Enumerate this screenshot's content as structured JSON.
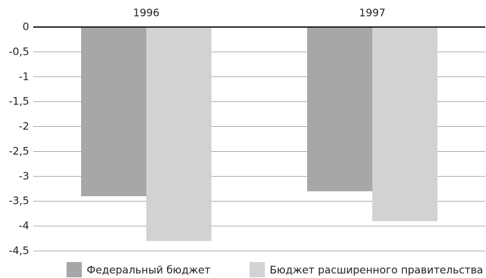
{
  "chart_data": {
    "type": "bar",
    "categories": [
      "1996",
      "1997"
    ],
    "series": [
      {
        "name": "Федеральный бюджет",
        "color": "#a7a7a9",
        "values": [
          -3.4,
          -3.3
        ]
      },
      {
        "name": "Бюджет расширенного правительства",
        "color": "#d1d2d4",
        "values": [
          -4.3,
          -3.9
        ]
      }
    ],
    "ylim": [
      -4.5,
      0
    ],
    "yticks": [
      0,
      {
        "value": -0.5,
        "label": "-0,5"
      },
      -1,
      {
        "value": -1.5,
        "label": "-1,5"
      },
      -2,
      {
        "value": -2.5,
        "label": "-2,5"
      },
      -3,
      {
        "value": -3.5,
        "label": "-3,5"
      },
      -4,
      {
        "value": -4.5,
        "label": "-4,5"
      }
    ],
    "grid": true,
    "legend": "bottom"
  }
}
